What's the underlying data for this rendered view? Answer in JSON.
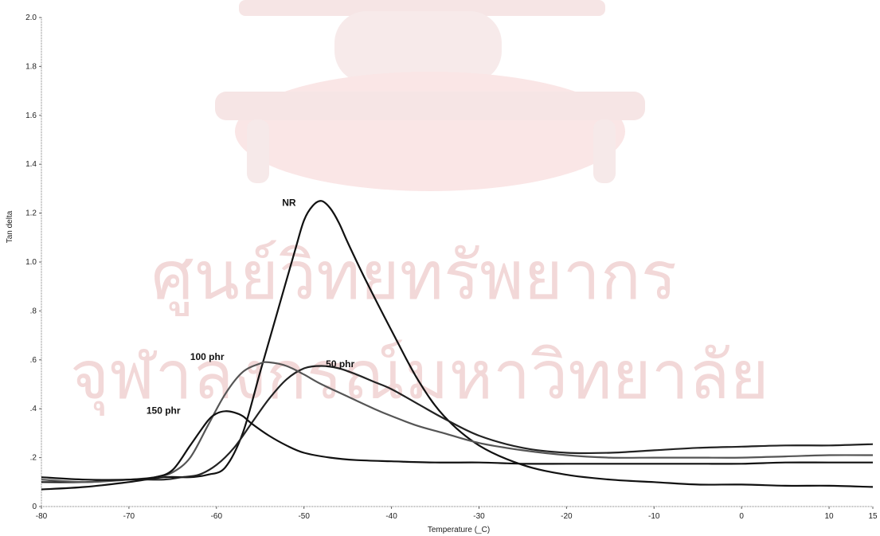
{
  "watermark": {
    "line1": "ศูนย์วิทยทรัพยากร",
    "line2": "จุฬาลงกรณ์มหาวิทยาลัย"
  },
  "chart_data": {
    "type": "line",
    "title": "",
    "xlabel": "Temperature (_C)",
    "ylabel": "Tan delta",
    "xlim": [
      -80,
      15
    ],
    "ylim": [
      0,
      2.0
    ],
    "x_ticks": [
      -80,
      -70,
      -60,
      -50,
      -40,
      -30,
      -20,
      -10,
      0,
      10,
      15
    ],
    "x_tick_labels": [
      "-80",
      "-70",
      "-60",
      "-50",
      "-40",
      "-30",
      "-20",
      "-10",
      "0",
      "10",
      "15"
    ],
    "y_ticks": [
      0,
      0.2,
      0.4,
      0.6,
      0.8,
      1.0,
      1.2,
      1.4,
      1.6,
      1.8,
      2.0
    ],
    "y_tick_labels": [
      "0",
      ".2",
      ".4",
      ".6",
      ".8",
      "1.0",
      "1.2",
      "1.4",
      "1.6",
      "1.8",
      "2.0"
    ],
    "grid": false,
    "series": [
      {
        "name": "NR",
        "color": "#111111",
        "x": [
          -80,
          -75,
          -70,
          -66,
          -63,
          -61,
          -59,
          -57,
          -55,
          -53,
          -51,
          -50,
          -49,
          -48,
          -47,
          -46,
          -45,
          -43,
          -40,
          -37,
          -34,
          -30,
          -25,
          -20,
          -15,
          -10,
          -5,
          0,
          5,
          10,
          15
        ],
        "y": [
          0.07,
          0.08,
          0.1,
          0.12,
          0.12,
          0.13,
          0.16,
          0.3,
          0.55,
          0.8,
          1.05,
          1.17,
          1.23,
          1.25,
          1.22,
          1.16,
          1.08,
          0.93,
          0.72,
          0.52,
          0.37,
          0.25,
          0.17,
          0.13,
          0.11,
          0.1,
          0.09,
          0.09,
          0.085,
          0.085,
          0.08
        ]
      },
      {
        "name": "50 phr",
        "color": "#222222",
        "x": [
          -80,
          -75,
          -70,
          -66,
          -64,
          -62,
          -60,
          -58,
          -56,
          -54,
          -52,
          -50,
          -48,
          -46,
          -44,
          -42,
          -40,
          -37,
          -34,
          -30,
          -25,
          -20,
          -15,
          -10,
          -5,
          0,
          5,
          10,
          15
        ],
        "y": [
          0.1,
          0.1,
          0.11,
          0.11,
          0.12,
          0.13,
          0.17,
          0.24,
          0.34,
          0.44,
          0.52,
          0.565,
          0.575,
          0.565,
          0.54,
          0.51,
          0.48,
          0.42,
          0.36,
          0.29,
          0.24,
          0.22,
          0.22,
          0.23,
          0.24,
          0.245,
          0.25,
          0.25,
          0.255
        ]
      },
      {
        "name": "100 phr",
        "color": "#555555",
        "x": [
          -80,
          -75,
          -70,
          -67,
          -65,
          -63,
          -61,
          -59,
          -57,
          -55,
          -54,
          -52,
          -50,
          -48,
          -45,
          -42,
          -40,
          -37,
          -34,
          -30,
          -25,
          -20,
          -15,
          -10,
          -5,
          0,
          5,
          10,
          15
        ],
        "y": [
          0.11,
          0.1,
          0.11,
          0.12,
          0.14,
          0.2,
          0.33,
          0.46,
          0.55,
          0.585,
          0.59,
          0.575,
          0.54,
          0.5,
          0.45,
          0.4,
          0.37,
          0.33,
          0.3,
          0.26,
          0.23,
          0.21,
          0.2,
          0.2,
          0.2,
          0.2,
          0.205,
          0.21,
          0.21
        ]
      },
      {
        "name": "150 phr",
        "color": "#111111",
        "x": [
          -80,
          -75,
          -70,
          -67,
          -65,
          -63,
          -61,
          -60,
          -59,
          -58,
          -57,
          -56,
          -54,
          -52,
          -50,
          -47,
          -44,
          -40,
          -35,
          -30,
          -25,
          -20,
          -15,
          -10,
          -5,
          0,
          5,
          10,
          15
        ],
        "y": [
          0.12,
          0.11,
          0.11,
          0.12,
          0.15,
          0.25,
          0.35,
          0.38,
          0.39,
          0.385,
          0.37,
          0.34,
          0.29,
          0.25,
          0.22,
          0.2,
          0.19,
          0.185,
          0.18,
          0.18,
          0.175,
          0.175,
          0.175,
          0.175,
          0.175,
          0.175,
          0.18,
          0.18,
          0.18
        ]
      }
    ],
    "annotations": [
      {
        "text": "NR",
        "x": -52.5,
        "y": 1.23
      },
      {
        "text": "100 phr",
        "x": -63.0,
        "y": 0.6
      },
      {
        "text": "50 phr",
        "x": -47.5,
        "y": 0.57
      },
      {
        "text": "150 phr",
        "x": -68.0,
        "y": 0.38
      }
    ]
  }
}
